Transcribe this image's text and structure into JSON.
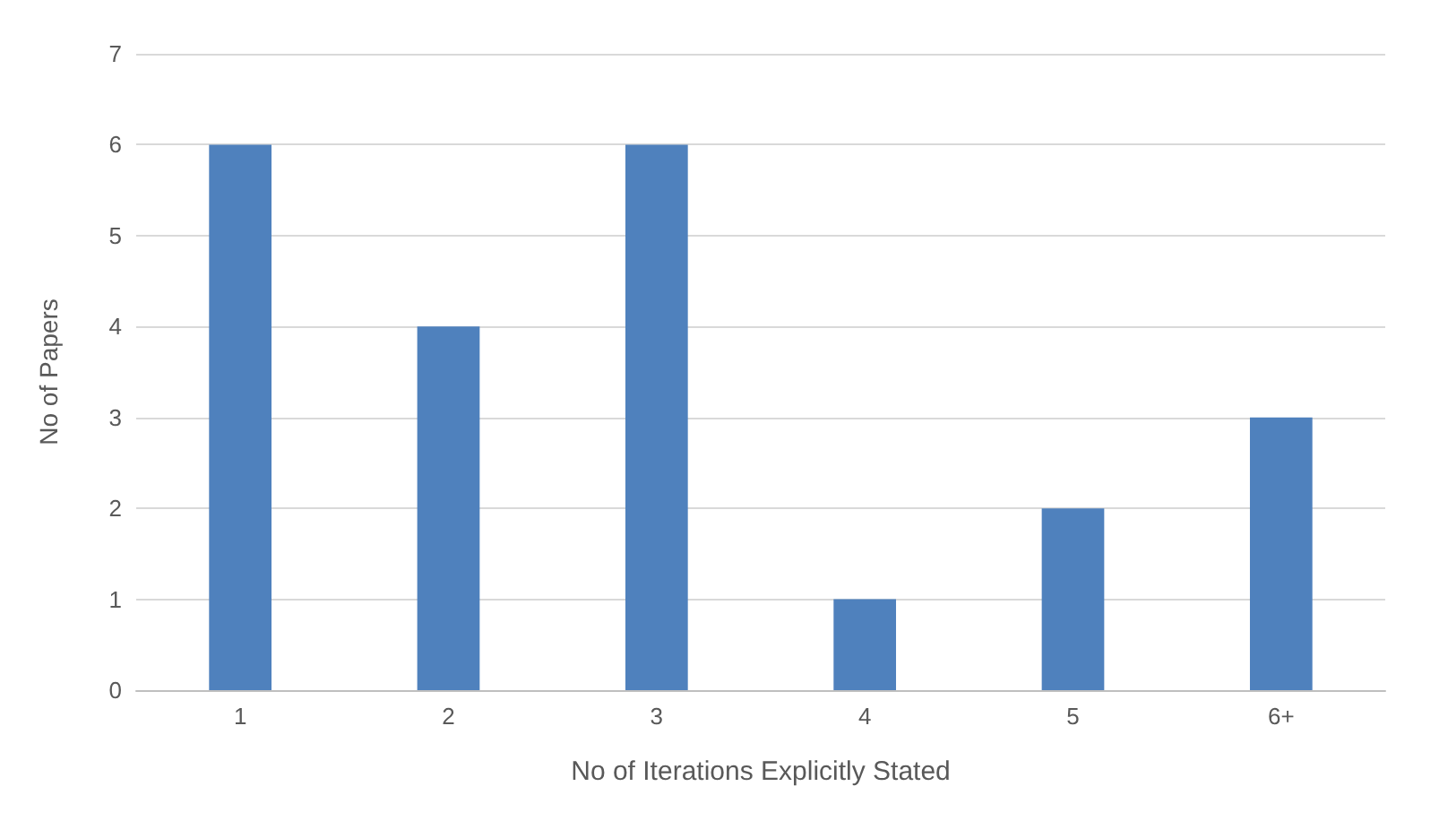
{
  "chart_data": {
    "type": "bar",
    "xlabel": "No of Iterations Explicitly Stated",
    "ylabel": "No of Papers",
    "categories": [
      "1",
      "2",
      "3",
      "4",
      "5",
      "6+"
    ],
    "values": [
      6,
      4,
      6,
      1,
      2,
      3
    ],
    "color": "#4f81bd",
    "ylim": [
      0,
      7
    ],
    "yticks": [
      0,
      1,
      2,
      3,
      4,
      5,
      6,
      7
    ],
    "grid": "y"
  }
}
